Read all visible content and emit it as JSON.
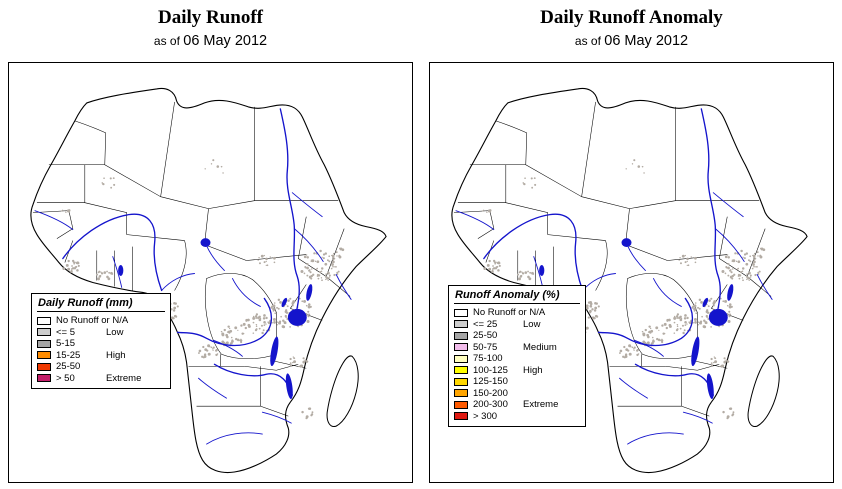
{
  "panels": [
    {
      "title": "Daily Runoff",
      "subtitle_prefix": "as of",
      "date": "06 May 2012",
      "legend": {
        "title": "Daily Runoff (mm)",
        "items": [
          {
            "color": "#FFFFFF",
            "range": "No Runoff or N/A",
            "tag": ""
          },
          {
            "color": "#CDCDCD",
            "range": "<= 5",
            "tag": "Low"
          },
          {
            "color": "#A5A5A5",
            "range": "5-15",
            "tag": ""
          },
          {
            "color": "#FF8C00",
            "range": "15-25",
            "tag": "High"
          },
          {
            "color": "#F03800",
            "range": "25-50",
            "tag": ""
          },
          {
            "color": "#C41E6A",
            "range": "> 50",
            "tag": "Extreme"
          }
        ]
      }
    },
    {
      "title": "Daily Runoff Anomaly",
      "subtitle_prefix": "as of",
      "date": "06 May 2012",
      "legend": {
        "title": "Runoff Anomaly (%)",
        "items": [
          {
            "color": "#FFFFFF",
            "range": "No Runoff or N/A",
            "tag": ""
          },
          {
            "color": "#CDCDCD",
            "range": "<= 25",
            "tag": "Low"
          },
          {
            "color": "#A5A5A5",
            "range": "25-50",
            "tag": ""
          },
          {
            "color": "#F2BCEB",
            "range": "50-75",
            "tag": "Medium"
          },
          {
            "color": "#FFFFC0",
            "range": "75-100",
            "tag": ""
          },
          {
            "color": "#FFFF00",
            "range": "100-125",
            "tag": "High"
          },
          {
            "color": "#FFD700",
            "range": "125-150",
            "tag": ""
          },
          {
            "color": "#FFA500",
            "range": "150-200",
            "tag": ""
          },
          {
            "color": "#FF5A00",
            "range": "200-300",
            "tag": "Extreme"
          },
          {
            "color": "#DF1A12",
            "range": "> 300",
            "tag": ""
          }
        ]
      }
    }
  ],
  "colors": {
    "river": "#1414CC",
    "land": "#FFFFFF",
    "border": "#000000",
    "speckle": "#B3ACA4"
  }
}
